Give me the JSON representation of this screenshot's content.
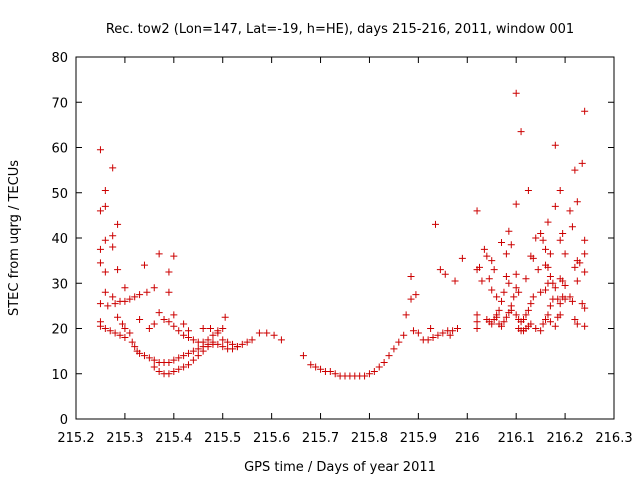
{
  "chart_data": {
    "type": "scatter",
    "title": "Rec. tow2 (Lon=147, Lat=-19, h=HE), days 215-216, 2011, window 001",
    "xlabel": "GPS time / Days of year 2011",
    "ylabel": "STEC from uqrg / TECUs",
    "xlim": [
      215.2,
      216.3
    ],
    "ylim": [
      0,
      80
    ],
    "xticks": [
      215.2,
      215.3,
      215.4,
      215.5,
      215.6,
      215.7,
      215.8,
      215.9,
      216,
      216.1,
      216.2,
      216.3
    ],
    "xtick_labels": [
      "215.2",
      "215.3",
      "215.4",
      "215.5",
      "215.6",
      "215.7",
      "215.8",
      "215.9",
      "216",
      "216.1",
      "216.2",
      "216.3"
    ],
    "yticks": [
      0,
      10,
      20,
      30,
      40,
      50,
      60,
      70,
      80
    ],
    "ytick_labels": [
      "0",
      "10",
      "20",
      "30",
      "40",
      "50",
      "60",
      "70",
      "80"
    ],
    "grid": false,
    "marker": "+",
    "color": "#cc0000",
    "series": [
      {
        "points": [
          [
            215.25,
            59.5
          ],
          [
            215.25,
            46
          ],
          [
            215.26,
            50.5
          ],
          [
            215.26,
            47
          ],
          [
            215.275,
            55.5
          ],
          [
            215.285,
            43
          ],
          [
            215.25,
            37.5
          ],
          [
            215.26,
            39.5
          ],
          [
            215.275,
            40.5
          ],
          [
            215.275,
            38
          ],
          [
            215.25,
            34.5
          ],
          [
            215.26,
            32.5
          ],
          [
            215.285,
            33
          ],
          [
            215.3,
            29
          ],
          [
            215.26,
            28
          ],
          [
            215.275,
            27
          ],
          [
            215.25,
            25.5
          ],
          [
            215.265,
            25
          ],
          [
            215.28,
            25.5
          ],
          [
            215.29,
            26
          ],
          [
            215.3,
            26
          ],
          [
            215.31,
            26.5
          ],
          [
            215.32,
            27
          ],
          [
            215.33,
            27.5
          ],
          [
            215.345,
            28
          ],
          [
            215.36,
            29
          ],
          [
            215.25,
            21.5
          ],
          [
            215.25,
            20.5
          ],
          [
            215.26,
            20
          ],
          [
            215.27,
            19.5
          ],
          [
            215.28,
            19
          ],
          [
            215.29,
            18.5
          ],
          [
            215.3,
            18
          ],
          [
            215.285,
            22.5
          ],
          [
            215.295,
            21
          ],
          [
            215.3,
            20
          ],
          [
            215.31,
            19
          ],
          [
            215.315,
            17
          ],
          [
            215.32,
            16
          ],
          [
            215.325,
            15
          ],
          [
            215.33,
            14.5
          ],
          [
            215.34,
            14
          ],
          [
            215.35,
            13.5
          ],
          [
            215.36,
            13
          ],
          [
            215.37,
            12.5
          ],
          [
            215.38,
            12.5
          ],
          [
            215.39,
            12.5
          ],
          [
            215.4,
            13
          ],
          [
            215.41,
            13.5
          ],
          [
            215.42,
            14
          ],
          [
            215.43,
            14.5
          ],
          [
            215.44,
            15
          ],
          [
            215.45,
            15.5
          ],
          [
            215.46,
            16
          ],
          [
            215.47,
            16.5
          ],
          [
            215.48,
            17
          ],
          [
            215.36,
            11.5
          ],
          [
            215.37,
            10.5
          ],
          [
            215.38,
            10
          ],
          [
            215.39,
            10
          ],
          [
            215.4,
            10.5
          ],
          [
            215.41,
            11
          ],
          [
            215.42,
            11.5
          ],
          [
            215.43,
            12
          ],
          [
            215.44,
            13
          ],
          [
            215.45,
            14
          ],
          [
            215.46,
            15
          ],
          [
            215.47,
            16
          ],
          [
            215.48,
            16.5
          ],
          [
            215.49,
            16.5
          ],
          [
            215.5,
            16
          ],
          [
            215.51,
            15.5
          ],
          [
            215.52,
            15.5
          ],
          [
            215.53,
            16
          ],
          [
            215.54,
            16.5
          ],
          [
            215.55,
            17
          ],
          [
            215.56,
            17.5
          ],
          [
            215.575,
            19
          ],
          [
            215.59,
            19
          ],
          [
            215.605,
            18.5
          ],
          [
            215.62,
            17.5
          ],
          [
            215.34,
            34
          ],
          [
            215.37,
            36.5
          ],
          [
            215.39,
            32.5
          ],
          [
            215.4,
            36
          ],
          [
            215.39,
            28
          ],
          [
            215.33,
            22
          ],
          [
            215.35,
            20
          ],
          [
            215.36,
            21
          ],
          [
            215.37,
            23.5
          ],
          [
            215.38,
            22
          ],
          [
            215.39,
            21.5
          ],
          [
            215.4,
            20.5
          ],
          [
            215.41,
            19.5
          ],
          [
            215.42,
            18.5
          ],
          [
            215.43,
            18
          ],
          [
            215.44,
            17.5
          ],
          [
            215.45,
            17
          ],
          [
            215.46,
            17
          ],
          [
            215.47,
            17.5
          ],
          [
            215.48,
            18.5
          ],
          [
            215.49,
            19.5
          ],
          [
            215.5,
            20
          ],
          [
            215.505,
            22.5
          ],
          [
            215.46,
            20
          ],
          [
            215.475,
            20
          ],
          [
            215.49,
            19
          ],
          [
            215.5,
            17.5
          ],
          [
            215.51,
            17
          ],
          [
            215.52,
            16.5
          ],
          [
            215.53,
            16
          ],
          [
            215.4,
            23
          ],
          [
            215.42,
            21
          ],
          [
            215.43,
            19.5
          ],
          [
            215.665,
            14
          ],
          [
            215.68,
            12
          ],
          [
            215.69,
            11.5
          ],
          [
            215.7,
            11
          ],
          [
            215.71,
            10.5
          ],
          [
            215.72,
            10.5
          ],
          [
            215.73,
            10
          ],
          [
            215.74,
            9.5
          ],
          [
            215.75,
            9.5
          ],
          [
            215.76,
            9.5
          ],
          [
            215.77,
            9.5
          ],
          [
            215.78,
            9.5
          ],
          [
            215.79,
            9.5
          ],
          [
            215.8,
            10
          ],
          [
            215.81,
            10.5
          ],
          [
            215.82,
            11.5
          ],
          [
            215.83,
            12.5
          ],
          [
            215.84,
            14
          ],
          [
            215.85,
            15.5
          ],
          [
            215.86,
            17
          ],
          [
            215.87,
            18.5
          ],
          [
            215.875,
            23
          ],
          [
            215.885,
            26.5
          ],
          [
            215.885,
            31.5
          ],
          [
            215.89,
            19.5
          ],
          [
            215.895,
            27.5
          ],
          [
            215.9,
            19
          ],
          [
            215.91,
            17.5
          ],
          [
            215.92,
            17.5
          ],
          [
            215.925,
            20
          ],
          [
            215.93,
            18
          ],
          [
            215.935,
            43
          ],
          [
            215.94,
            18.5
          ],
          [
            215.945,
            33
          ],
          [
            215.95,
            19
          ],
          [
            215.955,
            32
          ],
          [
            215.96,
            19.5
          ],
          [
            215.965,
            18.5
          ],
          [
            215.97,
            19.5
          ],
          [
            215.975,
            30.5
          ],
          [
            215.98,
            20
          ],
          [
            215.99,
            35.5
          ],
          [
            216.02,
            46
          ],
          [
            216.02,
            33
          ],
          [
            216.025,
            33.5
          ],
          [
            216.02,
            23
          ],
          [
            216.02,
            21.5
          ],
          [
            216.02,
            20
          ],
          [
            216.03,
            30.5
          ],
          [
            216.035,
            37.5
          ],
          [
            216.04,
            36
          ],
          [
            216.045,
            31
          ],
          [
            216.05,
            35
          ],
          [
            216.05,
            28.5
          ],
          [
            216.055,
            33
          ],
          [
            216.06,
            27
          ],
          [
            216.04,
            22
          ],
          [
            216.045,
            21.5
          ],
          [
            216.05,
            21
          ],
          [
            216.055,
            22
          ],
          [
            216.06,
            23
          ],
          [
            216.065,
            24
          ],
          [
            216.07,
            26
          ],
          [
            216.075,
            28
          ],
          [
            216.07,
            39
          ],
          [
            216.08,
            36.5
          ],
          [
            216.085,
            41.5
          ],
          [
            216.09,
            38.5
          ],
          [
            216.08,
            31.5
          ],
          [
            216.085,
            30
          ],
          [
            216.06,
            22.5
          ],
          [
            216.065,
            21
          ],
          [
            216.07,
            20.5
          ],
          [
            216.075,
            21.5
          ],
          [
            216.08,
            22.5
          ],
          [
            216.085,
            23.5
          ],
          [
            216.09,
            25
          ],
          [
            216.095,
            27
          ],
          [
            216.1,
            72
          ],
          [
            216.1,
            47.5
          ],
          [
            216.11,
            63.5
          ],
          [
            216.1,
            32
          ],
          [
            216.1,
            29
          ],
          [
            216.105,
            28
          ],
          [
            216.09,
            24
          ],
          [
            216.1,
            23
          ],
          [
            216.105,
            22
          ],
          [
            216.11,
            21.5
          ],
          [
            216.115,
            22
          ],
          [
            216.12,
            23
          ],
          [
            216.125,
            24
          ],
          [
            216.13,
            25.5
          ],
          [
            216.135,
            27
          ],
          [
            216.12,
            31
          ],
          [
            216.125,
            50.5
          ],
          [
            216.13,
            36
          ],
          [
            216.135,
            35.5
          ],
          [
            216.14,
            40
          ],
          [
            216.145,
            33
          ],
          [
            216.105,
            20
          ],
          [
            216.11,
            19.5
          ],
          [
            216.115,
            19.5
          ],
          [
            216.12,
            20
          ],
          [
            216.125,
            20.5
          ],
          [
            216.13,
            21
          ],
          [
            216.14,
            20
          ],
          [
            216.15,
            19.5
          ],
          [
            216.155,
            21
          ],
          [
            216.16,
            22
          ],
          [
            216.165,
            23
          ],
          [
            216.17,
            25
          ],
          [
            216.175,
            26.5
          ],
          [
            216.15,
            41
          ],
          [
            216.155,
            39.5
          ],
          [
            216.16,
            37.5
          ],
          [
            216.165,
            43.5
          ],
          [
            216.16,
            34
          ],
          [
            216.165,
            33.5
          ],
          [
            216.17,
            36.5
          ],
          [
            216.17,
            31.5
          ],
          [
            216.175,
            30
          ],
          [
            216.18,
            60.5
          ],
          [
            216.18,
            47
          ],
          [
            216.19,
            50.5
          ],
          [
            216.19,
            39.5
          ],
          [
            216.195,
            41
          ],
          [
            216.2,
            36.5
          ],
          [
            216.19,
            31
          ],
          [
            216.195,
            30.5
          ],
          [
            216.2,
            29.5
          ],
          [
            216.21,
            46
          ],
          [
            216.215,
            42.5
          ],
          [
            216.22,
            55
          ],
          [
            216.225,
            48
          ],
          [
            216.22,
            33.5
          ],
          [
            216.225,
            35
          ],
          [
            216.225,
            30.5
          ],
          [
            216.23,
            34.5
          ],
          [
            216.235,
            25.5
          ],
          [
            216.235,
            56.5
          ],
          [
            216.24,
            68
          ],
          [
            216.24,
            39.5
          ],
          [
            216.24,
            36.5
          ],
          [
            216.24,
            32.5
          ],
          [
            216.24,
            24.5
          ],
          [
            216.24,
            20.5
          ],
          [
            216.15,
            28
          ],
          [
            216.16,
            28.5
          ],
          [
            216.165,
            30
          ],
          [
            216.18,
            29
          ],
          [
            216.185,
            26.5
          ],
          [
            216.19,
            25.5
          ],
          [
            216.195,
            27
          ],
          [
            216.2,
            26.5
          ],
          [
            216.21,
            27
          ],
          [
            216.215,
            26
          ],
          [
            216.22,
            22
          ],
          [
            216.225,
            21
          ],
          [
            216.17,
            21.5
          ],
          [
            216.18,
            20.5
          ],
          [
            216.185,
            22.5
          ],
          [
            216.19,
            23
          ]
        ]
      }
    ]
  }
}
